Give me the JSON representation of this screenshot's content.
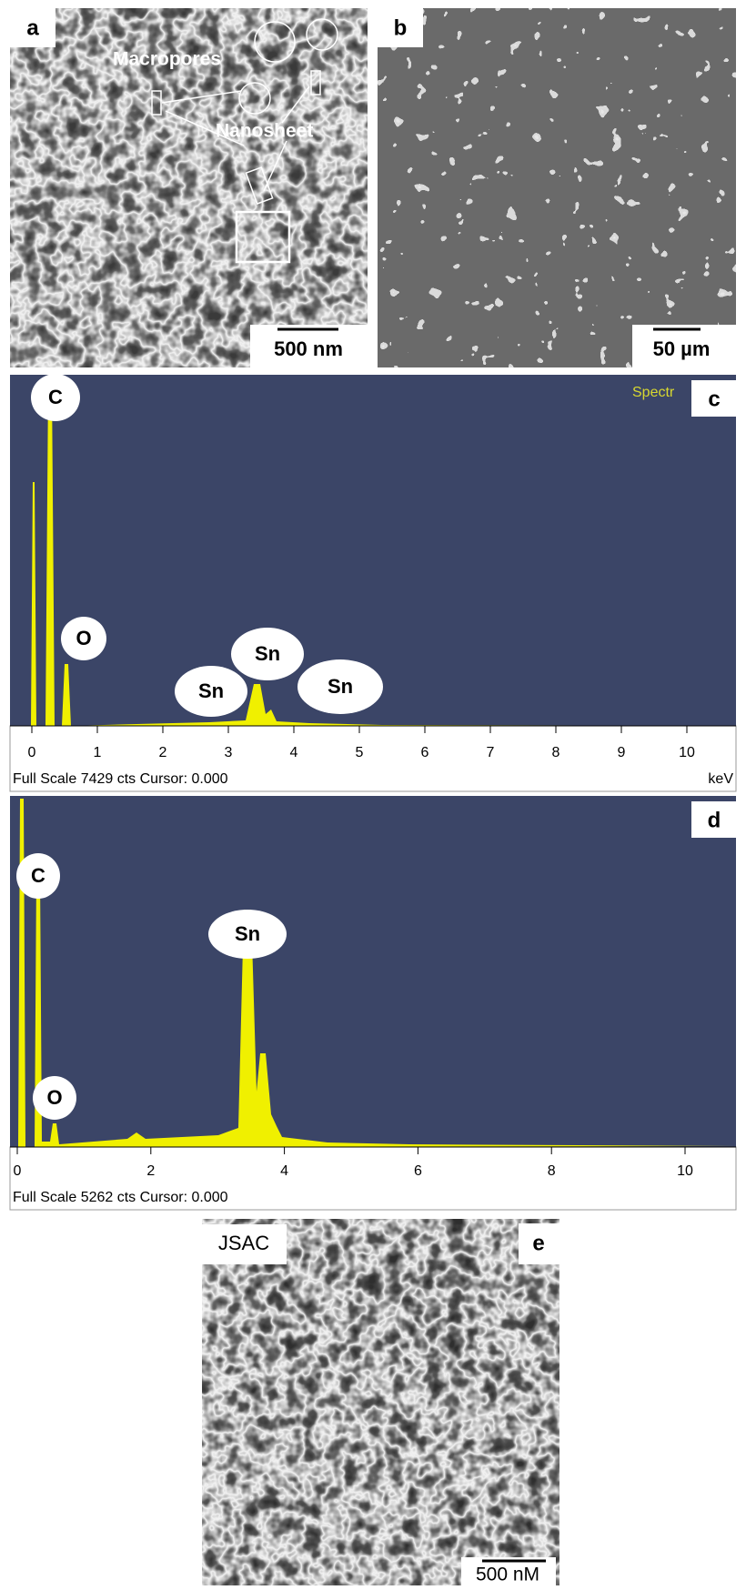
{
  "panels": {
    "a": {
      "label": "a",
      "annotations": [
        "Macropores",
        "Nanosheet"
      ],
      "scale_bar": "500 nm"
    },
    "b": {
      "label": "b",
      "scale_bar": "50 µm"
    },
    "c": {
      "label": "c",
      "legend": "Spectr",
      "peaks": [
        "C",
        "O",
        "Sn",
        "Sn",
        "Sn"
      ],
      "xticks": [
        0,
        1,
        2,
        3,
        4,
        5,
        6,
        7,
        8,
        9,
        10
      ],
      "footer": "Full Scale 7429 cts Cursor: 0.000",
      "unit": "keV"
    },
    "d": {
      "label": "d",
      "peaks": [
        "C",
        "Sn",
        "O"
      ],
      "xticks": [
        0,
        2,
        4,
        6,
        8,
        10
      ],
      "footer": "Full Scale 5262 cts Cursor: 0.000"
    },
    "e": {
      "label": "e",
      "sample": "JSAC",
      "scale_bar": "500 nM"
    }
  }
}
